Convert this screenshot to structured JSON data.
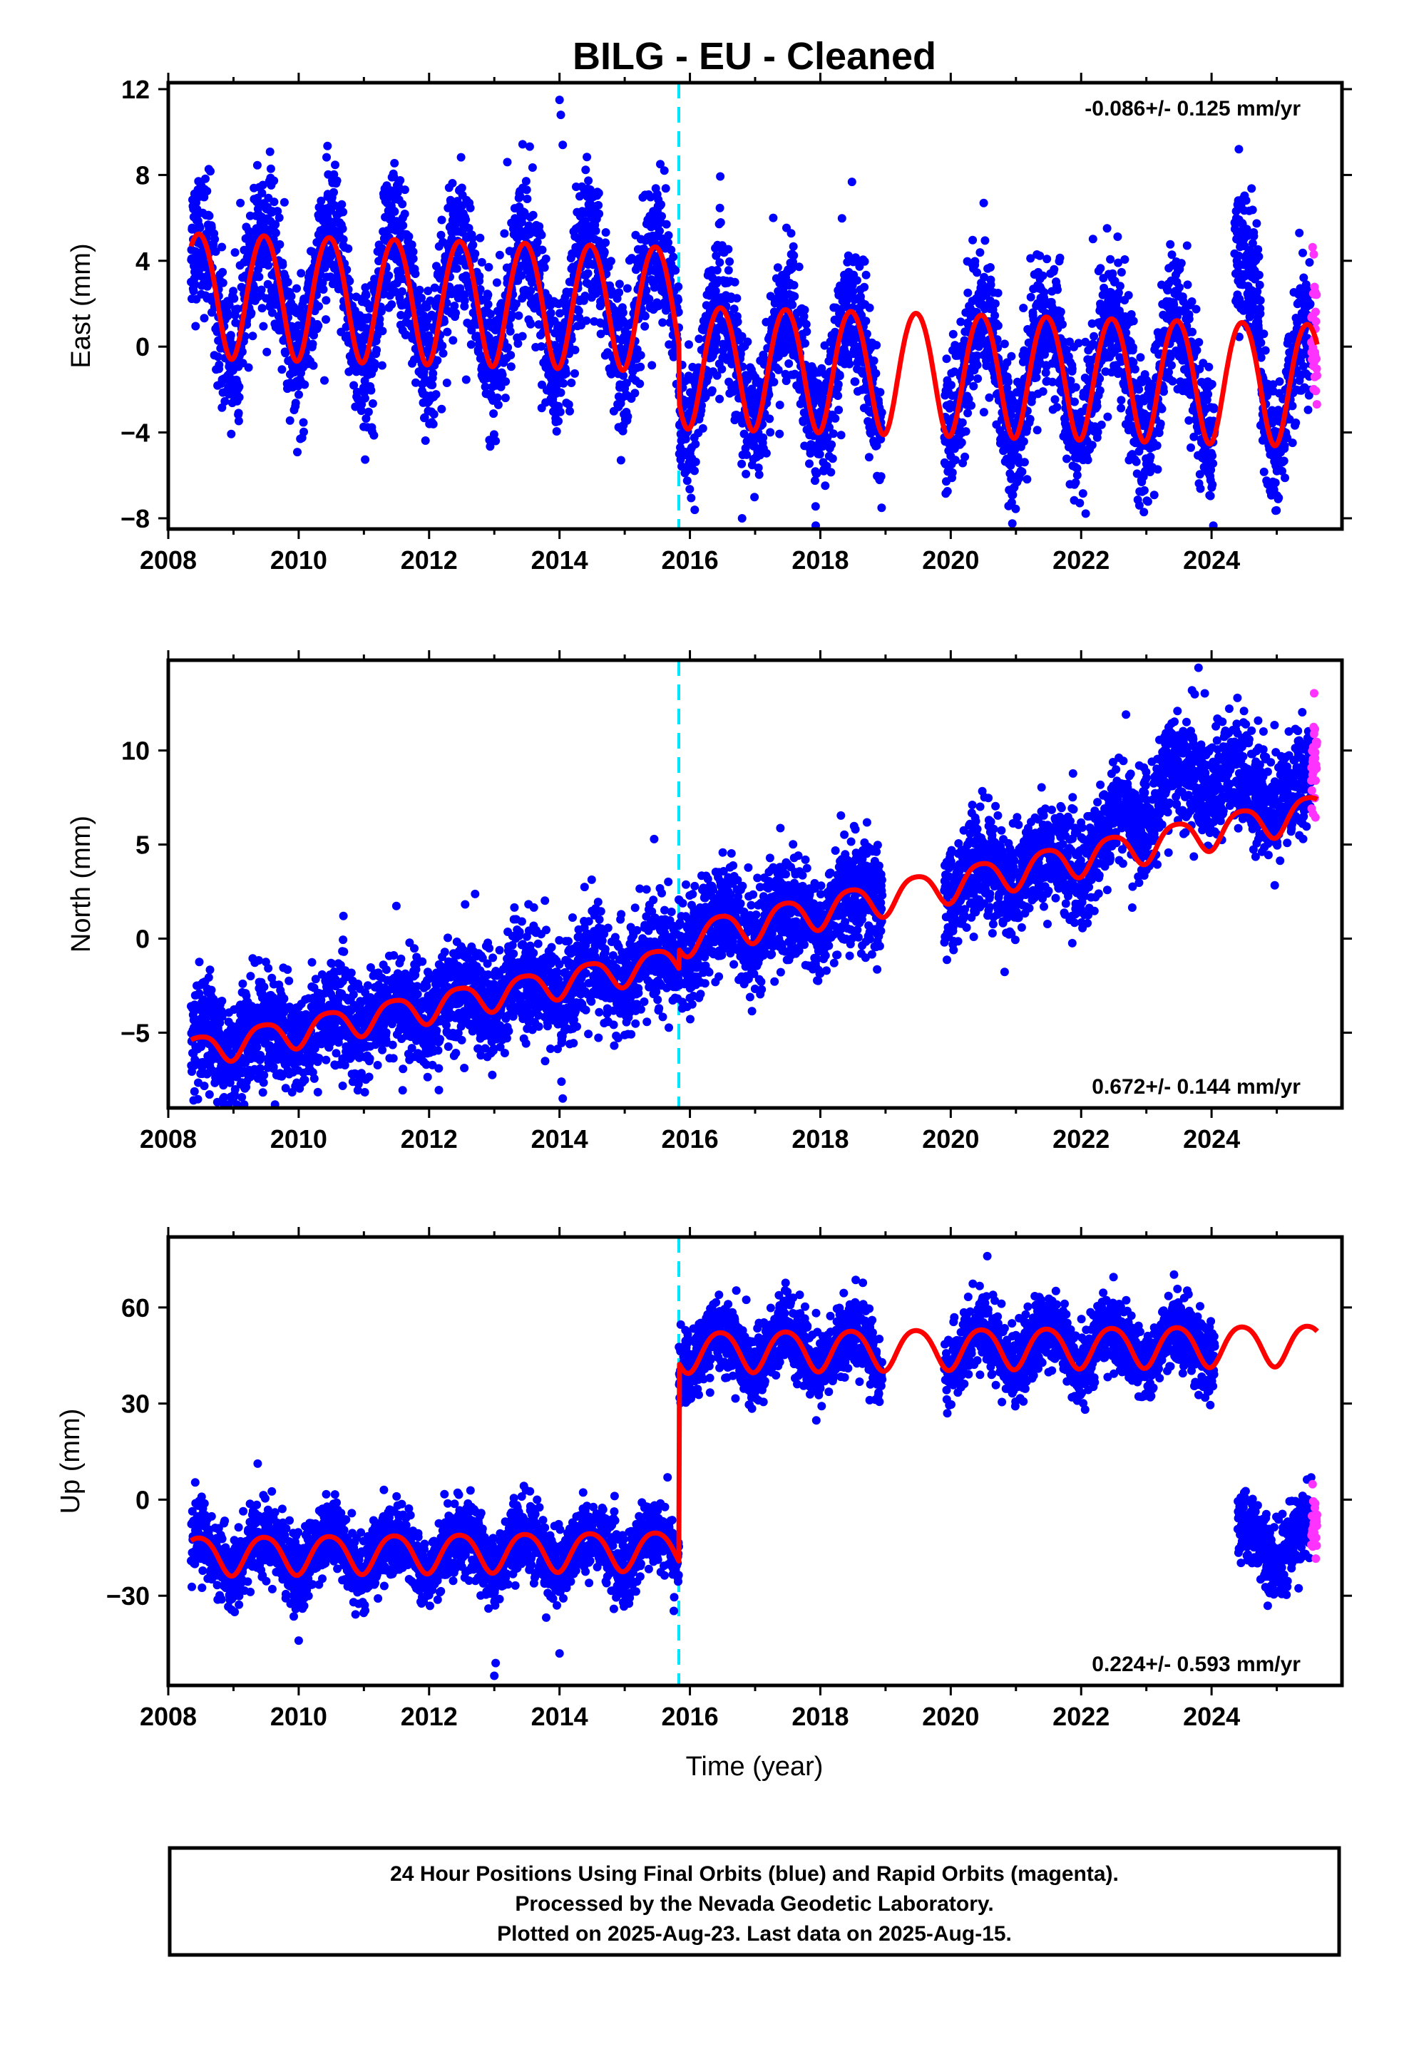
{
  "title": "BILG  - EU - Cleaned",
  "colors": {
    "final_orbits": "#0000ff",
    "rapid_orbits": "#ff33ff",
    "model": "#ff0000",
    "offset_marker": "#00e5ff",
    "frame": "#000000"
  },
  "xaxis": {
    "label": "Time (year)",
    "range": [
      2008,
      2026
    ],
    "ticks": [
      2008,
      2010,
      2012,
      2014,
      2016,
      2018,
      2020,
      2022,
      2024
    ]
  },
  "offset_epoch": 2015.83,
  "data_span": {
    "start": 2008.35,
    "end": 2025.62,
    "rapid_start": 2025.53
  },
  "footer": {
    "line1": "24 Hour Positions Using Final Orbits (blue) and Rapid Orbits (magenta).",
    "line2": "Processed by the Nevada Geodetic Laboratory.",
    "line3": "Plotted on 2025-Aug-23. Last data on 2025-Aug-15."
  },
  "chart_data": [
    {
      "type": "scatter",
      "panel": "east",
      "ylabel": "East (mm)",
      "ylim": [
        -8.5,
        12.3
      ],
      "yticks": [
        -8,
        -4,
        0,
        4,
        8,
        12
      ],
      "rate_text": "-0.086+/- 0.125 mm/yr",
      "rate_position": "top-right",
      "model": {
        "segments": [
          {
            "start": 2008.35,
            "end": 2015.83,
            "offset": 1.9,
            "trend": -0.086,
            "annual_amp": 2.9,
            "semiannual_amp": 0.2
          },
          {
            "start": 2015.83,
            "end": 2025.62,
            "offset": -0.8,
            "trend": -0.086,
            "annual_amp": 2.85,
            "semiannual_amp": 0.2
          }
        ],
        "ref_epoch": 2016.0
      },
      "scatter_sigma": 1.6,
      "gaps": [
        [
          2018.95,
          2019.9
        ],
        [
          2024.05,
          2024.35
        ]
      ],
      "episodes": [
        {
          "start": 2024.35,
          "end": 2024.75,
          "shift": 3.5
        }
      ],
      "outliers": [
        {
          "x": 2014.0,
          "y": 11.5
        },
        {
          "x": 2014.02,
          "y": 10.8
        },
        {
          "x": 2014.05,
          "y": 9.4
        },
        {
          "x": 2013.2,
          "y": 8.6
        },
        {
          "x": 2016.8,
          "y": -8.0
        }
      ]
    },
    {
      "type": "scatter",
      "panel": "north",
      "ylabel": "North (mm)",
      "ylim": [
        -9,
        14.8
      ],
      "yticks": [
        -5,
        0,
        5,
        10
      ],
      "rate_text": "0.672+/- 0.144 mm/yr",
      "rate_position": "bottom-right",
      "model": {
        "segments": [
          {
            "start": 2008.35,
            "end": 2015.83,
            "offset": -1.0,
            "trend": 0.65,
            "annual_amp": 0.8,
            "semiannual_amp": 0.15
          },
          {
            "start": 2015.83,
            "end": 2025.62,
            "offset": 0.1,
            "trend": 0.7,
            "annual_amp": 0.9,
            "semiannual_amp": 0.15
          }
        ],
        "ref_epoch": 2016.0
      },
      "scatter_sigma": 1.4,
      "gaps": [
        [
          2018.95,
          2019.9
        ]
      ],
      "episodes": [
        {
          "start": 2022.45,
          "end": 2023.2,
          "shift": 1.8
        },
        {
          "start": 2023.2,
          "end": 2024.4,
          "shift": 3.0
        },
        {
          "start": 2024.4,
          "end": 2025.62,
          "shift": 1.4
        }
      ],
      "outliers": [
        {
          "x": 2014.05,
          "y": -8.5
        },
        {
          "x": 2014.03,
          "y": -7.6
        },
        {
          "x": 2023.8,
          "y": 14.4
        },
        {
          "x": 2023.7,
          "y": 13.2
        }
      ]
    },
    {
      "type": "scatter",
      "panel": "up",
      "ylabel": "Up (mm)",
      "ylim": [
        -58,
        82
      ],
      "yticks": [
        -30,
        0,
        30,
        60
      ],
      "rate_text": "0.224+/- 0.593 mm/yr",
      "rate_position": "bottom-right",
      "model": {
        "segments": [
          {
            "start": 2008.35,
            "end": 2015.83,
            "offset": -15.5,
            "trend": 0.224,
            "annual_amp": 6.0,
            "semiannual_amp": 0.8
          },
          {
            "start": 2015.83,
            "end": 2025.62,
            "offset": 46.5,
            "trend": 0.224,
            "annual_amp": 6.3,
            "semiannual_amp": 0.8
          }
        ],
        "ref_epoch": 2016.0
      },
      "scatter_sigma": 5.5,
      "gaps": [
        [
          2018.95,
          2019.9
        ],
        [
          2024.05,
          2024.4
        ]
      ],
      "episodes": [
        {
          "start": 2024.4,
          "end": 2025.62,
          "shift": -62
        }
      ],
      "outliers": [
        {
          "x": 2013.0,
          "y": -55
        },
        {
          "x": 2013.02,
          "y": -51
        },
        {
          "x": 2014.0,
          "y": -48
        },
        {
          "x": 2010.0,
          "y": -44
        }
      ]
    }
  ]
}
